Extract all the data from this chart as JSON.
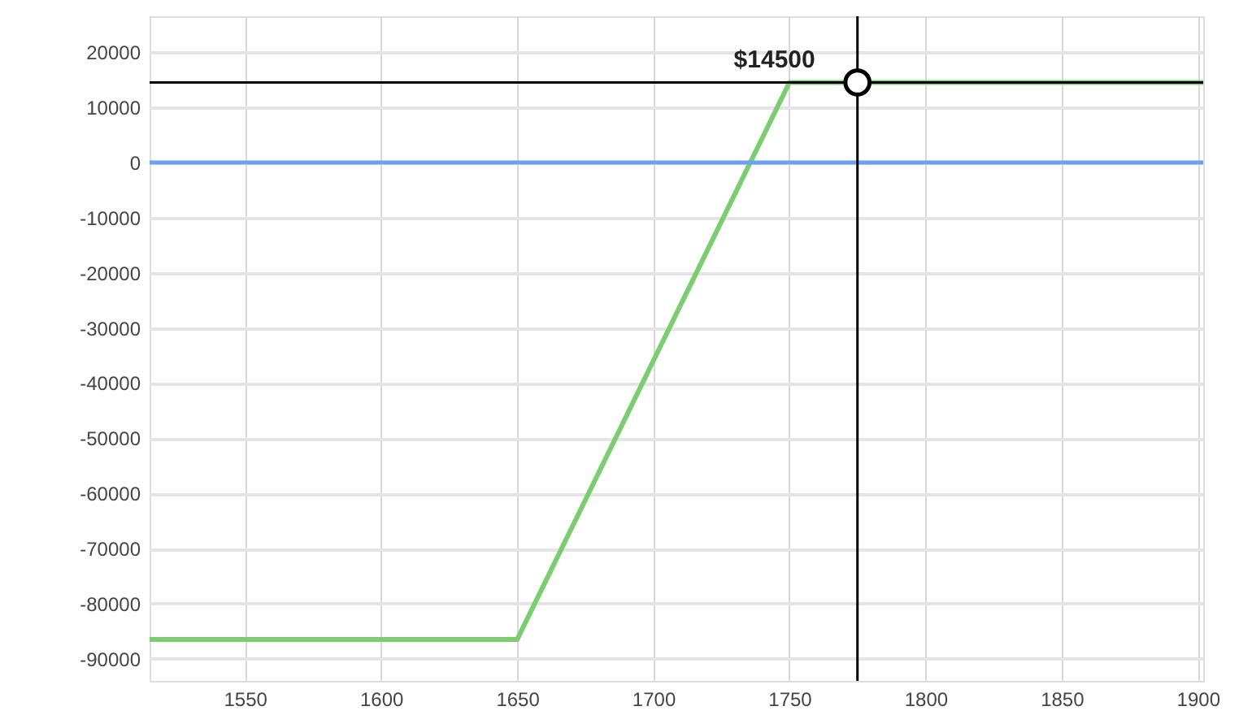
{
  "chart_data": {
    "type": "line",
    "series": [
      {
        "type": "line",
        "color": "#7ccd72",
        "x": [
          1515,
          1650,
          1750,
          1902
        ],
        "values": [
          -86500,
          -86500,
          14500,
          14500
        ]
      },
      {
        "type": "scatter",
        "color": "#000000",
        "marker": "circle",
        "x": [
          1775
        ],
        "values": [
          14500
        ]
      }
    ],
    "xlim": [
      1515,
      1902
    ],
    "xticks": [
      1550,
      1600,
      1650,
      1700,
      1750,
      1800,
      1850,
      1900
    ],
    "ylim": [
      -94000,
      26500
    ],
    "yticks": [
      -90000,
      -80000,
      -70000,
      -60000,
      -50000,
      -40000,
      -30000,
      -20000,
      -10000,
      0,
      10000,
      20000
    ],
    "ref_lines": [
      {
        "axis": "y",
        "value": 0,
        "color": "#6fa0f0"
      },
      {
        "axis": "y",
        "value": 14500,
        "color": "#000000"
      },
      {
        "axis": "x",
        "value": 1775,
        "color": "#000000"
      }
    ],
    "annotations": [
      {
        "text": "$14500",
        "x": 1775,
        "y": 14500
      }
    ],
    "grid": true,
    "marker": "none",
    "line_style": "solid"
  }
}
